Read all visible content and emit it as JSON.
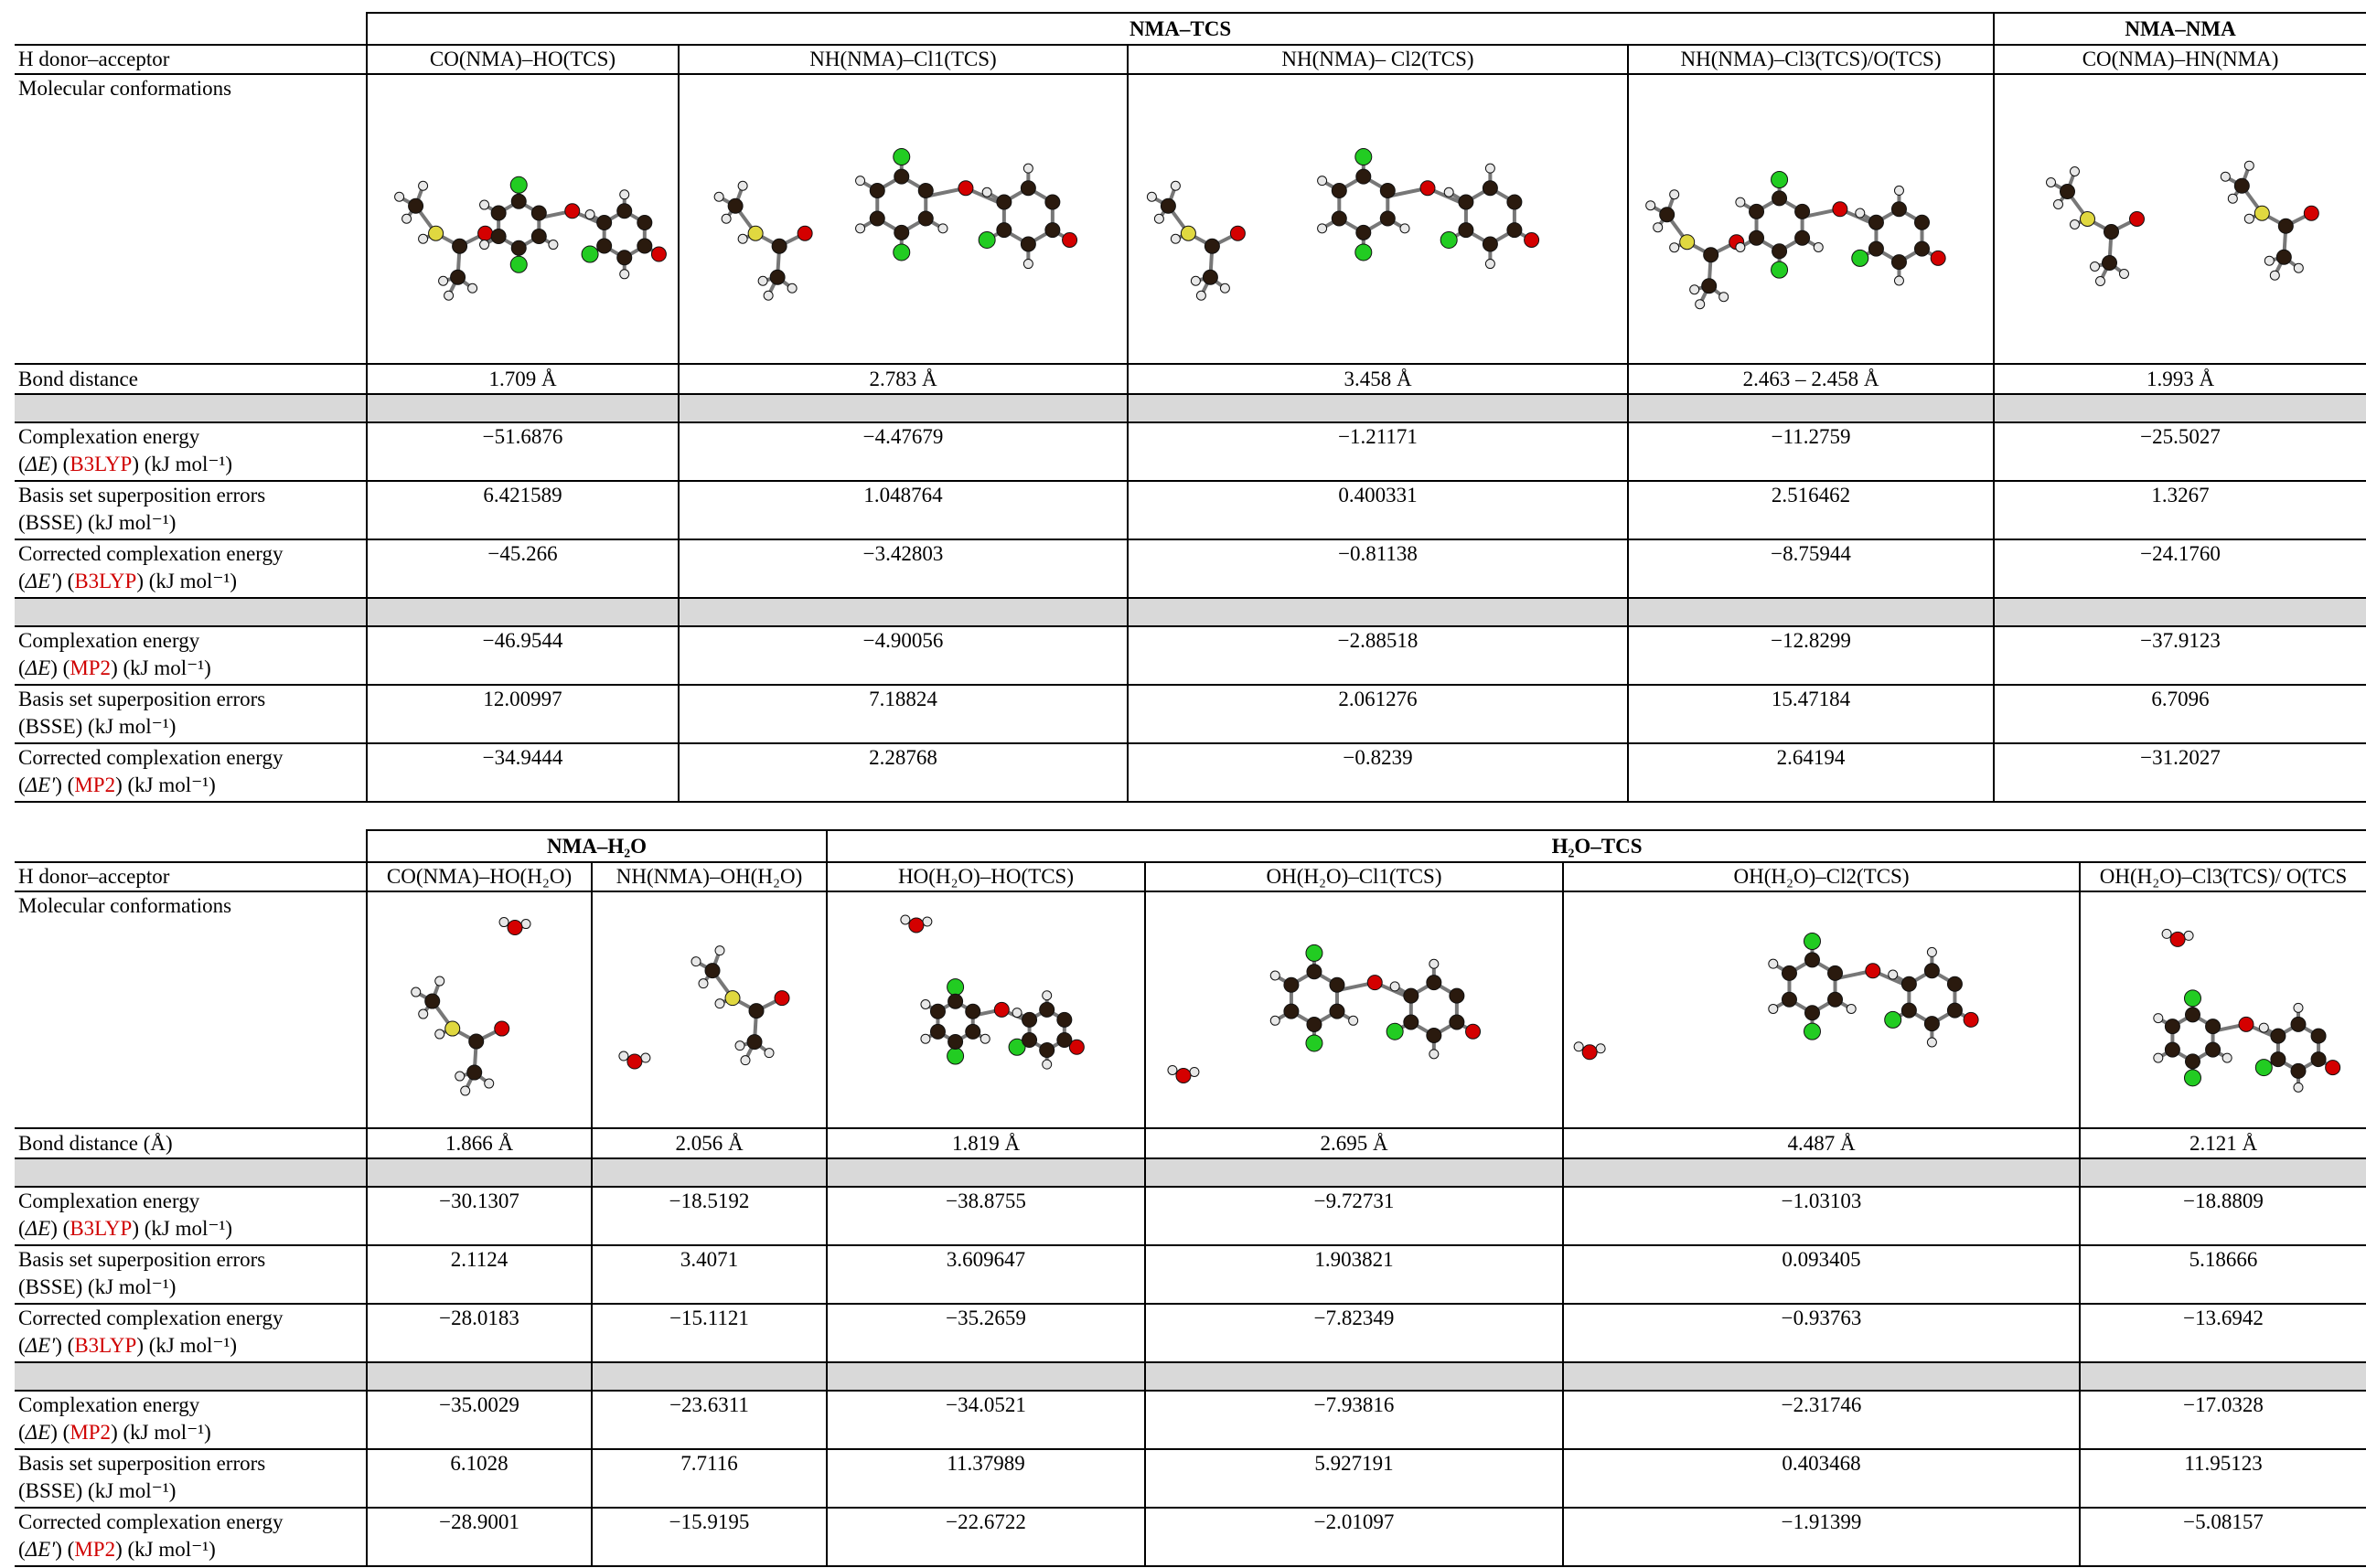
{
  "tables": [
    {
      "groups": [
        "NMA–TCS",
        "NMA–NMA"
      ],
      "header_label": "H donor–acceptor",
      "columns": [
        "CO(NMA)–HO(TCS)",
        "NH(NMA)–Cl1(TCS)",
        "NH(NMA)– Cl2(TCS)",
        "NH(NMA)–Cl3(TCS)/O(TCS)",
        "CO(NMA)–HN(NMA)"
      ],
      "conformation_label": "Molecular conformations",
      "bond_label": "Bond distance",
      "bond": [
        "1.709 Å",
        "2.783 Å",
        "3.458 Å",
        "2.463 – 2.458 Å",
        "1.993 Å"
      ],
      "b3lyp_rows": [
        {
          "line1": "Complexation energy",
          "line2": [
            "(",
            "ΔE",
            ") (",
            "B3LYP",
            ") (kJ mol⁻¹)"
          ],
          "values": [
            "−51.6876",
            "−4.47679",
            "−1.21171",
            "−11.2759",
            "−25.5027"
          ]
        },
        {
          "line1": "Basis set superposition errors",
          "line2": [
            "(BSSE) (kJ mol⁻¹)"
          ],
          "values": [
            "6.421589",
            "1.048764",
            "0.400331",
            "2.516462",
            "1.3267"
          ]
        },
        {
          "line1": "Corrected complexation energy",
          "line2": [
            "(",
            "ΔE′",
            ") (",
            "B3LYP",
            ") (kJ mol⁻¹)"
          ],
          "values": [
            "−45.266",
            "−3.42803",
            "−0.81138",
            "−8.75944",
            "−24.1760"
          ]
        }
      ],
      "mp2_rows": [
        {
          "line1": "Complexation energy",
          "line2": [
            "(",
            "ΔE",
            ") (",
            "MP2",
            ") (kJ mol⁻¹)"
          ],
          "values": [
            "−46.9544",
            "−4.90056",
            "−2.88518",
            "−12.8299",
            "−37.9123"
          ]
        },
        {
          "line1": "Basis set superposition errors",
          "line2": [
            "(BSSE) (kJ mol⁻¹)"
          ],
          "values": [
            "12.00997",
            "7.18824",
            "2.061276",
            "15.47184",
            "6.7096"
          ]
        },
        {
          "line1": "Corrected complexation energy",
          "line2": [
            "(",
            "ΔE′",
            ") (",
            "MP2",
            ") (kJ mol⁻¹)"
          ],
          "values": [
            "−34.9444",
            "2.28768",
            "−0.8239",
            "2.64194",
            "−31.2027"
          ]
        }
      ]
    },
    {
      "groups": [
        "NMA–H₂O",
        "H₂O–TCS"
      ],
      "header_label": "H donor–acceptor",
      "columns": [
        "CO(NMA)–HO(H₂O)",
        "NH(NMA)–OH(H₂O)",
        "HO(H₂O)–HO(TCS)",
        "OH(H₂O)–Cl1(TCS)",
        "OH(H₂O)–Cl2(TCS)",
        "OH(H₂O)–Cl3(TCS)/ O(TCS"
      ],
      "conformation_label": "Molecular conformations",
      "bond_label": "Bond distance (Å)",
      "bond": [
        "1.866 Å",
        "2.056 Å",
        "1.819 Å",
        "2.695 Å",
        "4.487 Å",
        "2.121 Å"
      ],
      "b3lyp_rows": [
        {
          "line1": "Complexation energy",
          "line2": [
            "(",
            "ΔE",
            ") (",
            "B3LYP",
            ") (kJ mol⁻¹)"
          ],
          "values": [
            "−30.1307",
            "−18.5192",
            "−38.8755",
            "−9.72731",
            "−1.03103",
            "−18.8809"
          ]
        },
        {
          "line1": "Basis set superposition errors",
          "line2": [
            "(BSSE) (kJ mol⁻¹)"
          ],
          "values": [
            "2.1124",
            "3.4071",
            "3.609647",
            "1.903821",
            "0.093405",
            "5.18666"
          ]
        },
        {
          "line1": "Corrected complexation energy",
          "line2": [
            "(",
            "ΔE′",
            ") (",
            "B3LYP",
            ") (kJ mol⁻¹)"
          ],
          "values": [
            "−28.0183",
            "−15.1121",
            "−35.2659",
            "−7.82349",
            "−0.93763",
            "−13.6942"
          ]
        }
      ],
      "mp2_rows": [
        {
          "line1": "Complexation energy",
          "line2": [
            "(",
            "ΔE",
            ") (",
            "MP2",
            ") (kJ mol⁻¹)"
          ],
          "values": [
            "−35.0029",
            "−23.6311",
            "−34.0521",
            "−7.93816",
            "−2.31746",
            "−17.0328"
          ]
        },
        {
          "line1": "Basis set superposition errors",
          "line2": [
            "(BSSE) (kJ mol⁻¹)"
          ],
          "values": [
            "6.1028",
            "7.7116",
            "11.37989",
            "5.927191",
            "0.403468",
            "11.95123"
          ]
        },
        {
          "line1": "Corrected complexation energy",
          "line2": [
            "(",
            "ΔE′",
            ") (",
            "MP2",
            ") (kJ mol⁻¹)"
          ],
          "values": [
            "−28.9001",
            "−15.9195",
            "−22.6722",
            "−2.01097",
            "−1.91399",
            "−5.08157"
          ]
        }
      ]
    }
  ]
}
